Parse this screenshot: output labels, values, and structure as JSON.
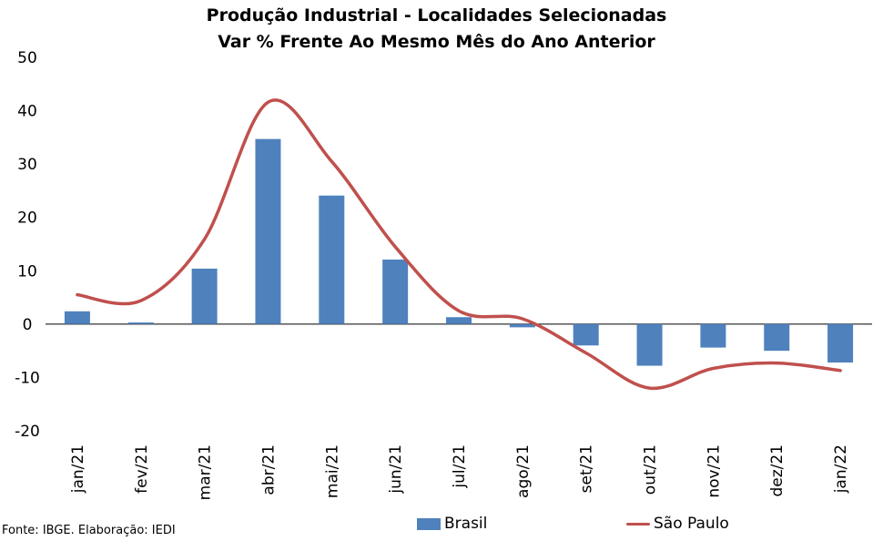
{
  "chart_data": {
    "type": "bar+line",
    "title": "Produção Industrial - Localidades Selecionadas",
    "subtitle": "Var % Frente Ao Mesmo Mês do Ano Anterior",
    "categories": [
      "jan/21",
      "fev/21",
      "mar/21",
      "abr/21",
      "mai/21",
      "jun/21",
      "jul/21",
      "ago/21",
      "set/21",
      "out/21",
      "nov/21",
      "dez/21",
      "jan/22"
    ],
    "series": [
      {
        "name": "Brasil",
        "type": "bar",
        "color": "#4f81bd",
        "values": [
          2.4,
          0.3,
          10.4,
          34.7,
          24.1,
          12.1,
          1.3,
          -0.6,
          -4.0,
          -7.8,
          -4.4,
          -5.0,
          -7.2
        ]
      },
      {
        "name": "São Paulo",
        "type": "line",
        "color": "#c0504d",
        "values": [
          5.5,
          4.4,
          15.9,
          41.6,
          30.5,
          14.5,
          2.5,
          1.0,
          -5.4,
          -12.0,
          -8.3,
          -7.3,
          -8.7
        ]
      }
    ],
    "ylim": [
      -20,
      50
    ],
    "yticks": [
      -20,
      -10,
      0,
      10,
      20,
      30,
      40,
      50
    ],
    "grid": false,
    "legend": "bottom",
    "source": "Fonte: IBGE. Elaboração: IEDI"
  }
}
